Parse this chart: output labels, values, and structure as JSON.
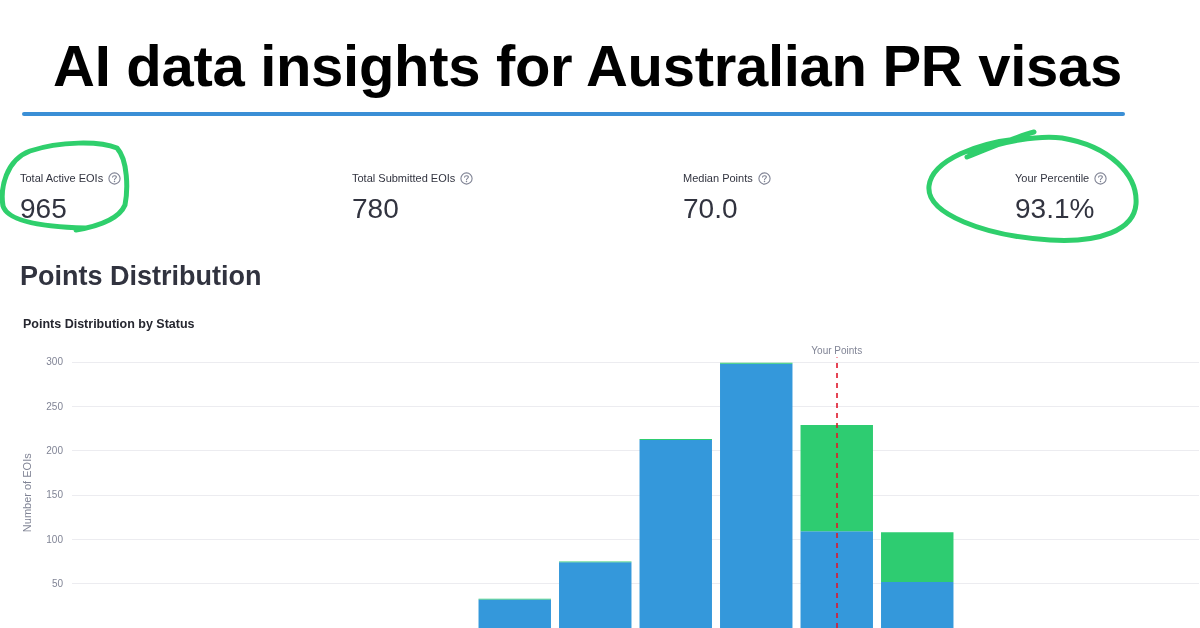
{
  "chart_data": [
    {
      "type": "other",
      "title": "AI data insights for Australian PR visas",
      "categories": [
        "Total Active EOIs",
        "Total Submitted EOIs",
        "Median Points",
        "Your Percentile"
      ],
      "value_labels": [
        "965",
        "780",
        "70.0",
        "93.1%"
      ]
    },
    {
      "type": "bar",
      "title": "Points Distribution",
      "subtitle": "Points Distribution by Status",
      "ylabel": "Number of EOIs",
      "categories": [
        null,
        null,
        null,
        null,
        null,
        null,
        null,
        null,
        null,
        null,
        null,
        null,
        null,
        null
      ],
      "stacked": true,
      "series": [
        {
          "color": "#3498db",
          "values": [
            null,
            null,
            null,
            null,
            null,
            32,
            74,
            212,
            298,
            109,
            52,
            null,
            null,
            null
          ]
        },
        {
          "color": "#2ecc71",
          "values": [
            null,
            null,
            null,
            null,
            null,
            1,
            1,
            1,
            1,
            120,
            56,
            null,
            null,
            null
          ]
        }
      ],
      "ylim": [
        0,
        305
      ],
      "yticks": [
        50,
        100,
        150,
        200,
        250,
        300
      ],
      "grid": "y",
      "tick_labels": "y",
      "annotations": [
        "Your Points"
      ]
    }
  ]
}
